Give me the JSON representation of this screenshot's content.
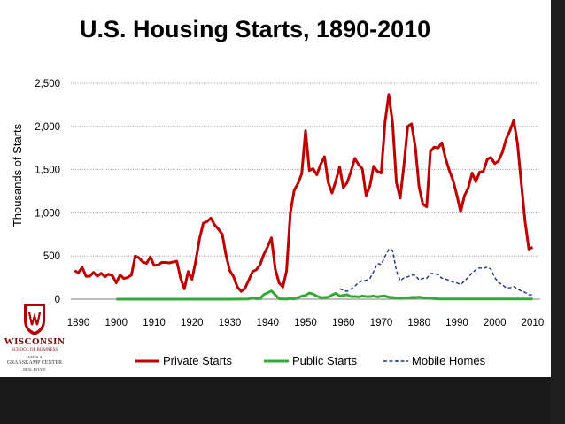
{
  "title": "U.S. Housing Starts, 1890-2010",
  "colors": {
    "private": "#c00000",
    "public": "#33aa33",
    "mobile": "#1f2f8a",
    "background": "#ffffff",
    "dark_frame": "#1f1f1f"
  },
  "logo": {
    "crest_icon": "uw-crest-icon",
    "line1": "WISCONSIN",
    "line2": "SCHOOL OF BUSINESS",
    "line3": "JAMES A.",
    "line4": "GRAASKAMP CENTER",
    "line5": "REAL ESTATE"
  },
  "chart_data": {
    "type": "line",
    "title": "U.S. Housing Starts, 1890-2010",
    "ylabel": "Thousands of Starts",
    "xlabel": "",
    "xlim": [
      1888,
      2012
    ],
    "ylim": [
      0,
      2500
    ],
    "xticks": [
      1890,
      1900,
      1910,
      1920,
      1930,
      1940,
      1950,
      1960,
      1970,
      1980,
      1990,
      2000,
      2010
    ],
    "yticks": [
      0,
      500,
      1000,
      1500,
      2000,
      2500
    ],
    "ytick_labels": [
      "0",
      "500",
      "1,000",
      "1,500",
      "2,000",
      "2,500"
    ],
    "grid": "horizontal dotted",
    "legend_position": "bottom",
    "series": [
      {
        "name": "Private Starts",
        "style": "solid-thick",
        "x": [
          1889,
          1890,
          1891,
          1892,
          1893,
          1894,
          1895,
          1896,
          1897,
          1898,
          1899,
          1900,
          1901,
          1902,
          1903,
          1904,
          1905,
          1906,
          1907,
          1908,
          1909,
          1910,
          1911,
          1912,
          1913,
          1914,
          1915,
          1916,
          1917,
          1918,
          1919,
          1920,
          1921,
          1922,
          1923,
          1924,
          1925,
          1926,
          1927,
          1928,
          1929,
          1930,
          1931,
          1932,
          1933,
          1934,
          1935,
          1936,
          1937,
          1938,
          1939,
          1940,
          1941,
          1942,
          1943,
          1944,
          1945,
          1946,
          1947,
          1948,
          1949,
          1950,
          1951,
          1952,
          1953,
          1954,
          1955,
          1956,
          1957,
          1958,
          1959,
          1960,
          1961,
          1962,
          1963,
          1964,
          1965,
          1966,
          1967,
          1968,
          1969,
          1970,
          1971,
          1972,
          1973,
          1974,
          1975,
          1976,
          1977,
          1978,
          1979,
          1980,
          1981,
          1982,
          1983,
          1984,
          1985,
          1986,
          1987,
          1988,
          1989,
          1990,
          1991,
          1992,
          1993,
          1994,
          1995,
          1996,
          1997,
          1998,
          1999,
          2000,
          2001,
          2002,
          2003,
          2004,
          2005,
          2006,
          2007,
          2008,
          2009,
          2010
        ],
        "values": [
          330,
          305,
          370,
          265,
          265,
          310,
          265,
          300,
          260,
          290,
          270,
          190,
          280,
          240,
          250,
          280,
          500,
          480,
          430,
          415,
          490,
          390,
          395,
          425,
          425,
          420,
          430,
          440,
          240,
          120,
          320,
          230,
          440,
          700,
          880,
          900,
          940,
          860,
          810,
          750,
          510,
          330,
          260,
          140,
          90,
          125,
          220,
          320,
          340,
          400,
          520,
          610,
          710,
          350,
          190,
          140,
          330,
          1000,
          1260,
          1340,
          1450,
          1950,
          1490,
          1510,
          1440,
          1560,
          1650,
          1350,
          1230,
          1370,
          1530,
          1290,
          1350,
          1480,
          1630,
          1560,
          1510,
          1200,
          1310,
          1540,
          1480,
          1460,
          2050,
          2370,
          2040,
          1350,
          1170,
          1550,
          2000,
          2030,
          1760,
          1300,
          1100,
          1070,
          1710,
          1760,
          1750,
          1810,
          1630,
          1490,
          1370,
          1200,
          1010,
          1200,
          1290,
          1460,
          1360,
          1470,
          1480,
          1620,
          1640,
          1570,
          1600,
          1700,
          1850,
          1950,
          2070,
          1800,
          1350,
          900,
          580,
          600
        ]
      },
      {
        "name": "Public Starts",
        "style": "solid-thick",
        "x": [
          1900,
          1930,
          1935,
          1936,
          1937,
          1938,
          1939,
          1940,
          1941,
          1942,
          1943,
          1944,
          1945,
          1946,
          1947,
          1948,
          1949,
          1950,
          1951,
          1952,
          1953,
          1954,
          1955,
          1956,
          1957,
          1958,
          1959,
          1960,
          1961,
          1962,
          1963,
          1964,
          1965,
          1966,
          1967,
          1968,
          1969,
          1970,
          1971,
          1972,
          1973,
          1974,
          1975,
          1976,
          1977,
          1978,
          1979,
          1980,
          1981,
          1982,
          1983,
          1984,
          1985,
          1986,
          1987,
          1988,
          1989,
          1990,
          1995,
          2000,
          2005,
          2010
        ],
        "values": [
          0,
          0,
          3,
          15,
          5,
          7,
          55,
          75,
          95,
          50,
          5,
          3,
          1,
          8,
          3,
          18,
          36,
          44,
          71,
          59,
          36,
          19,
          20,
          24,
          49,
          68,
          37,
          44,
          52,
          30,
          32,
          27,
          37,
          31,
          30,
          38,
          27,
          35,
          38,
          23,
          21,
          14,
          8,
          11,
          13,
          22,
          20,
          25,
          18,
          12,
          10,
          6,
          4,
          3,
          2,
          2,
          2,
          2,
          2,
          2,
          2,
          2
        ]
      },
      {
        "name": "Mobile Homes",
        "style": "dashed",
        "x": [
          1959,
          1960,
          1961,
          1962,
          1963,
          1964,
          1965,
          1966,
          1967,
          1968,
          1969,
          1970,
          1971,
          1972,
          1973,
          1974,
          1975,
          1976,
          1977,
          1978,
          1979,
          1980,
          1981,
          1982,
          1983,
          1984,
          1985,
          1986,
          1987,
          1988,
          1989,
          1990,
          1991,
          1992,
          1993,
          1994,
          1995,
          1996,
          1997,
          1998,
          1999,
          2000,
          2001,
          2002,
          2003,
          2004,
          2005,
          2006,
          2007,
          2008,
          2009,
          2010
        ],
        "values": [
          120,
          104,
          90,
          118,
          150,
          191,
          216,
          217,
          240,
          318,
          413,
          401,
          497,
          576,
          567,
          329,
          213,
          246,
          258,
          280,
          277,
          222,
          241,
          240,
          296,
          296,
          284,
          244,
          233,
          218,
          198,
          188,
          171,
          210,
          254,
          304,
          340,
          363,
          354,
          373,
          348,
          250,
          193,
          168,
          131,
          131,
          147,
          117,
          96,
          79,
          50,
          50
        ]
      }
    ]
  }
}
